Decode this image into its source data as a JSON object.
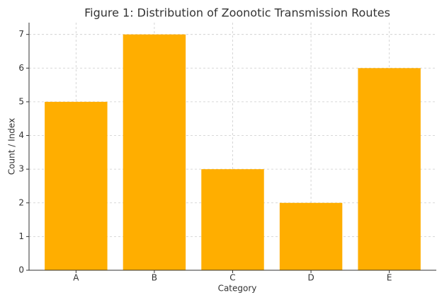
{
  "chart_data": {
    "type": "bar",
    "title": "Figure 1: Distribution of Zoonotic Transmission Routes",
    "x_label": "Category",
    "y_label": "Count / Index",
    "categories": [
      "A",
      "B",
      "C",
      "D",
      "E"
    ],
    "values": [
      5,
      7,
      3,
      2,
      6
    ],
    "color": "#ffae00",
    "ylim": [
      0,
      7.35
    ],
    "yticks": [
      0,
      1,
      2,
      3,
      4,
      5,
      6,
      7
    ],
    "grid": true
  }
}
